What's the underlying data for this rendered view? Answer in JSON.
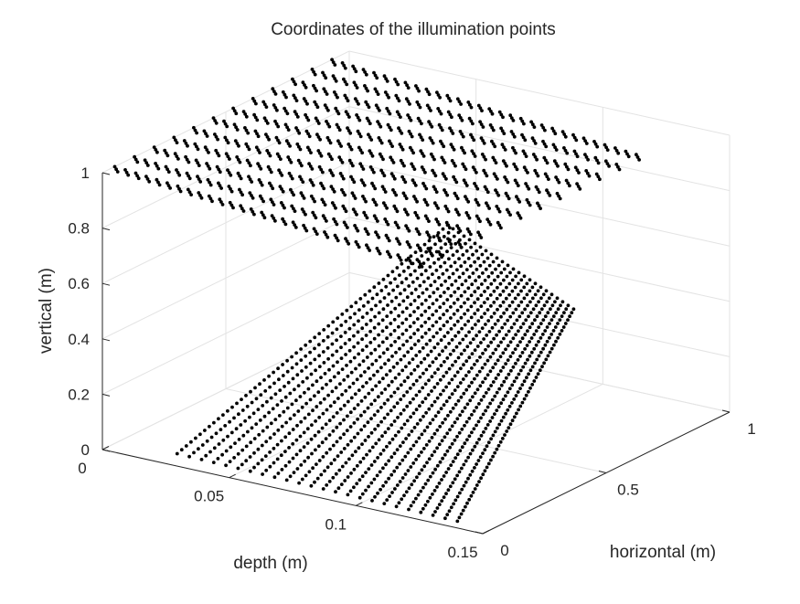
{
  "chart_data": {
    "type": "scatter",
    "title": "Coordinates of the illumination points",
    "xlabel": "depth (m)",
    "ylabel": "horizontal (m)",
    "zlabel": "vertical (m)",
    "xlim": [
      0,
      0.15
    ],
    "ylim": [
      0,
      1
    ],
    "zlim": [
      0,
      1
    ],
    "x_ticks": [
      "0",
      "0.05",
      "0.1",
      "0.15"
    ],
    "y_ticks": [
      "0",
      "0.5",
      "1"
    ],
    "z_ticks": [
      "0",
      "0.2",
      "0.4",
      "0.6",
      "0.8",
      "1"
    ],
    "grid": true,
    "marker_color": "#000000",
    "series": [
      {
        "description_kind": "slanted-surface",
        "depth_range": [
          0.01,
          0.14
        ],
        "horizontal_range": [
          0.0,
          1.0
        ],
        "vertical_range": [
          0.0,
          0.45
        ],
        "rows": 24,
        "points_per_row": 60
      },
      {
        "description_kind": "ceiling-stripes",
        "stripe_horizontal": [
          0.05,
          0.13,
          0.21,
          0.29,
          0.37,
          0.45,
          0.53,
          0.61,
          0.69,
          0.77,
          0.85,
          0.93
        ],
        "depth_range": [
          0.0,
          0.12
        ],
        "vertical_range": [
          0.9,
          1.0
        ],
        "points_per_stripe": 90
      }
    ]
  }
}
